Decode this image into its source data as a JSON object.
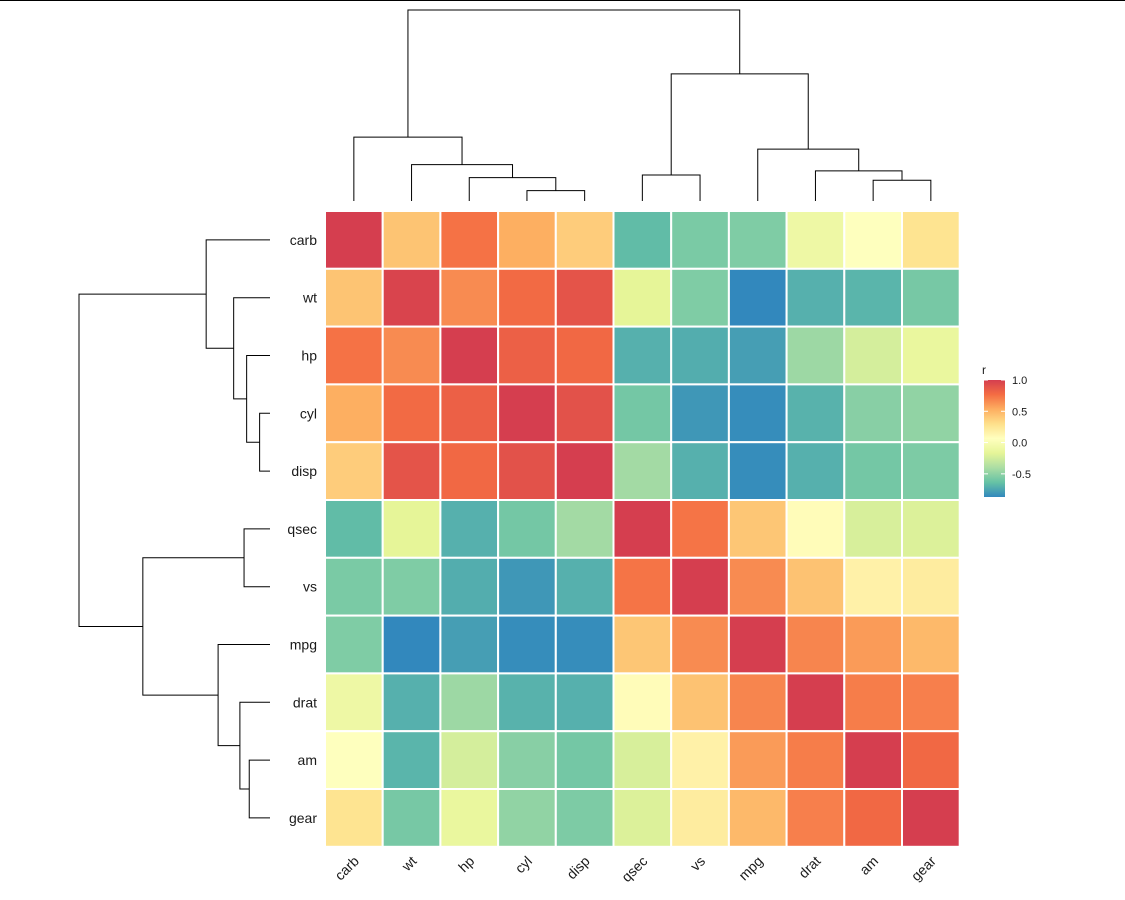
{
  "chart_data": {
    "type": "heatmap",
    "title": "",
    "xlabel": "",
    "ylabel": "",
    "row_labels": [
      "carb",
      "wt",
      "hp",
      "cyl",
      "disp",
      "qsec",
      "vs",
      "mpg",
      "drat",
      "am",
      "gear"
    ],
    "col_labels": [
      "carb",
      "wt",
      "hp",
      "cyl",
      "disp",
      "qsec",
      "vs",
      "mpg",
      "drat",
      "am",
      "gear"
    ],
    "values": [
      [
        1.0,
        0.43,
        0.75,
        0.53,
        0.39,
        -0.66,
        -0.57,
        -0.55,
        -0.09,
        0.06,
        0.27
      ],
      [
        0.43,
        0.97,
        0.66,
        0.78,
        0.89,
        -0.17,
        -0.55,
        -0.87,
        -0.71,
        -0.69,
        -0.58
      ],
      [
        0.75,
        0.66,
        1.0,
        0.83,
        0.79,
        -0.71,
        -0.72,
        -0.78,
        -0.45,
        -0.24,
        -0.13
      ],
      [
        0.53,
        0.78,
        0.83,
        1.0,
        0.9,
        -0.59,
        -0.81,
        -0.85,
        -0.7,
        -0.52,
        -0.49
      ],
      [
        0.39,
        0.89,
        0.79,
        0.9,
        1.0,
        -0.43,
        -0.71,
        -0.85,
        -0.71,
        -0.59,
        -0.56
      ],
      [
        -0.66,
        -0.17,
        -0.71,
        -0.59,
        -0.43,
        1.0,
        0.74,
        0.42,
        0.09,
        -0.23,
        -0.21
      ],
      [
        -0.57,
        -0.55,
        -0.72,
        -0.81,
        -0.71,
        0.74,
        1.0,
        0.66,
        0.44,
        0.17,
        0.21
      ],
      [
        -0.55,
        -0.87,
        -0.78,
        -0.85,
        -0.85,
        0.42,
        0.66,
        1.0,
        0.68,
        0.6,
        0.48
      ],
      [
        -0.09,
        -0.71,
        -0.45,
        -0.7,
        -0.71,
        0.09,
        0.44,
        0.68,
        1.0,
        0.71,
        0.7
      ],
      [
        0.06,
        -0.69,
        -0.24,
        -0.52,
        -0.59,
        -0.23,
        0.17,
        0.6,
        0.71,
        1.0,
        0.79
      ],
      [
        0.27,
        -0.58,
        -0.13,
        -0.49,
        -0.56,
        -0.21,
        0.21,
        0.48,
        0.7,
        0.79,
        1.0
      ]
    ],
    "legend": {
      "title": "r",
      "ticks": [
        1.0,
        0.5,
        0.0,
        -0.5
      ],
      "tick_labels": [
        "1.0",
        "0.5",
        "0.0",
        "-0.5"
      ],
      "range": [
        -0.87,
        1.0
      ],
      "placement": "right"
    },
    "colormap": "Spectral",
    "dendrograms": {
      "columns": "top",
      "rows": "left"
    }
  }
}
